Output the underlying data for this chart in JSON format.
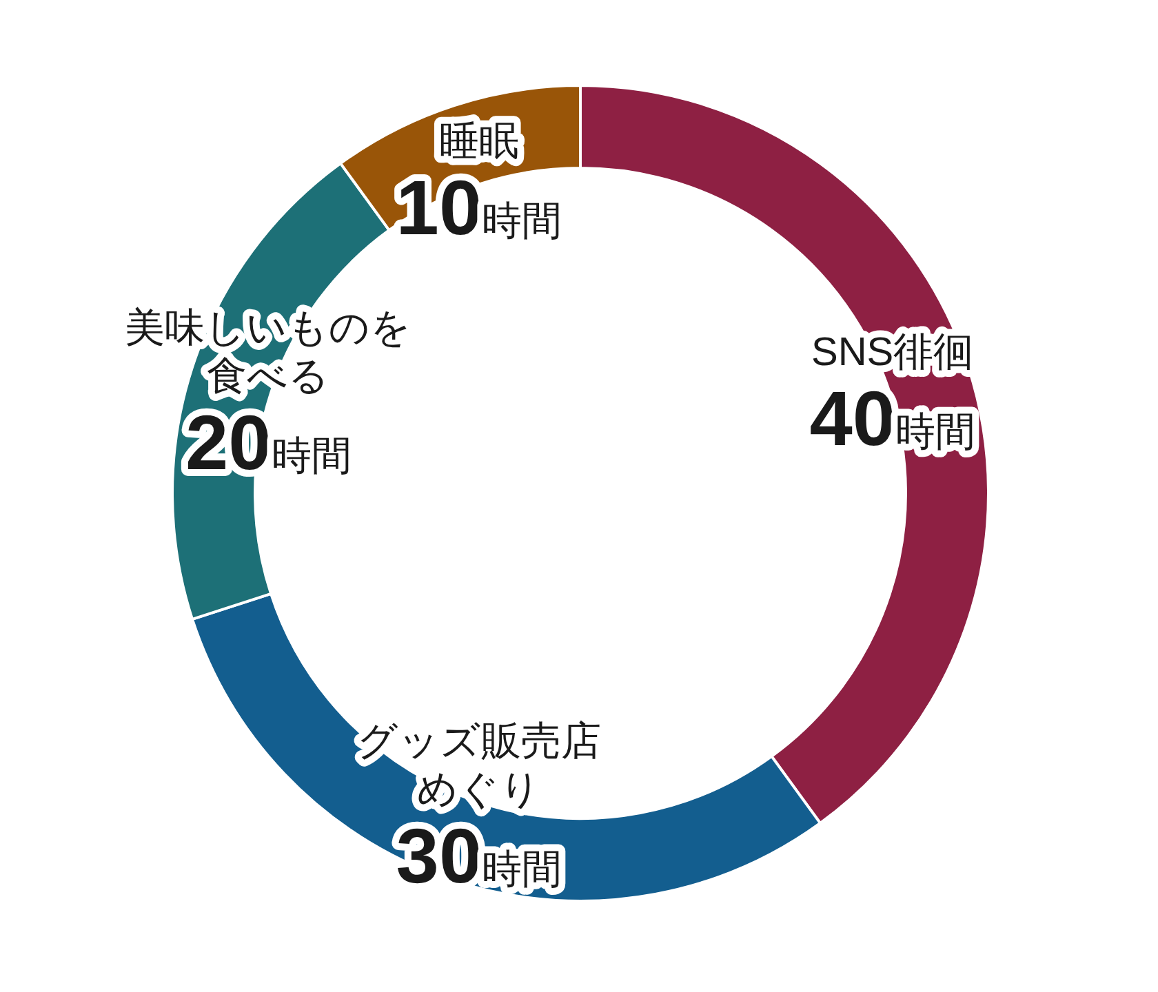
{
  "chart_data": {
    "type": "donut",
    "categories": [
      "SNS徘徊",
      "グッズ販売店めぐり",
      "美味しいものを食べる",
      "睡眠"
    ],
    "values": [
      40,
      30,
      20,
      10
    ],
    "colors": [
      "#8e2043",
      "#135e8f",
      "#1d7077",
      "#995508"
    ],
    "value_labels": [
      "**40**時間",
      "**30**時間",
      "**20**時間",
      "**10**時間"
    ]
  }
}
